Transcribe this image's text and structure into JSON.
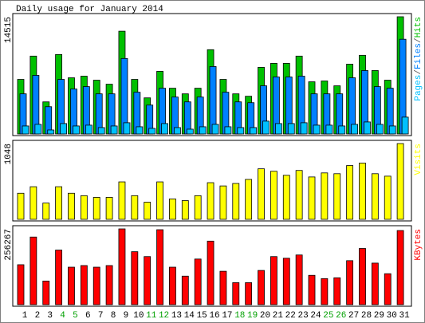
{
  "chart_data": [
    {
      "type": "bar",
      "title": "Daily usage for January 2014",
      "categories": [
        "1",
        "2",
        "3",
        "4",
        "5",
        "6",
        "7",
        "8",
        "9",
        "10",
        "11",
        "12",
        "13",
        "14",
        "15",
        "16",
        "17",
        "18",
        "19",
        "20",
        "21",
        "22",
        "23",
        "24",
        "25",
        "26",
        "27",
        "28",
        "29",
        "30",
        "31"
      ],
      "category_colors": [
        "#000000",
        "#000000",
        "#000000",
        "#00a000",
        "#00a000",
        "#000000",
        "#000000",
        "#000000",
        "#000000",
        "#000000",
        "#00a000",
        "#00a000",
        "#000000",
        "#000000",
        "#000000",
        "#000000",
        "#000000",
        "#00a000",
        "#00a000",
        "#000000",
        "#000000",
        "#000000",
        "#000000",
        "#000000",
        "#00a000",
        "#00a000",
        "#000000",
        "#000000",
        "#000000",
        "#000000",
        "#000000"
      ],
      "legend_separator": "/",
      "series": [
        {
          "name": "Pages",
          "color": "#00c0ff",
          "values": [
            994,
            1193,
            497,
            1292,
            994,
            1094,
            795,
            994,
            1392,
            895,
            696,
            1292,
            795,
            597,
            895,
            1193,
            895,
            795,
            795,
            1591,
            1292,
            1292,
            1392,
            1094,
            1094,
            994,
            1193,
            1491,
            1193,
            994,
            2088
          ]
        },
        {
          "name": "Files",
          "color": "#0080ff",
          "values": [
            4971,
            7258,
            3380,
            6760,
            5567,
            5866,
            4971,
            4971,
            9346,
            5170,
            3579,
            5667,
            4573,
            3977,
            4573,
            8351,
            5170,
            3977,
            3877,
            5965,
            7059,
            7059,
            7158,
            4971,
            4971,
            4971,
            6959,
            7854,
            5866,
            5667,
            11731
          ]
        },
        {
          "name": "Hits",
          "color": "#00c000",
          "values": [
            6760,
            9644,
            3977,
            9843,
            6959,
            7158,
            6661,
            6164,
            12726,
            6760,
            4474,
            7755,
            5667,
            4971,
            5667,
            10439,
            6760,
            4971,
            4673,
            8252,
            8749,
            8749,
            9644,
            6462,
            6562,
            5965,
            8649,
            9743,
            7854,
            6661,
            14515
          ]
        }
      ],
      "ylim": [
        0,
        14515
      ],
      "yticks": [
        14515
      ]
    },
    {
      "type": "bar",
      "series": [
        {
          "name": "Visits",
          "color": "#ffff00",
          "values": [
            361,
            451,
            225,
            451,
            361,
            327,
            304,
            304,
            518,
            327,
            237,
            518,
            282,
            259,
            327,
            507,
            462,
            496,
            552,
            699,
            665,
            609,
            676,
            586,
            642,
            631,
            744,
            778,
            631,
            597,
            1048
          ]
        }
      ],
      "ylim": [
        0,
        1048
      ],
      "yticks": [
        1048
      ]
    },
    {
      "type": "bar",
      "series": [
        {
          "name": "KBytes",
          "color": "#ff0000",
          "values": [
            135022,
            228710,
            79911,
            184620,
            126755,
            132266,
            126755,
            132266,
            256267,
            179109,
            162576,
            253512,
            126755,
            96445,
            154310,
            214932,
            112978,
            74400,
            74400,
            115733,
            162576,
            157065,
            168087,
            99200,
            88177,
            90933,
            148799,
            190131,
            140533,
            104710,
            250756
          ]
        }
      ],
      "ylim": [
        0,
        256267
      ],
      "yticks": [
        256267
      ]
    }
  ]
}
